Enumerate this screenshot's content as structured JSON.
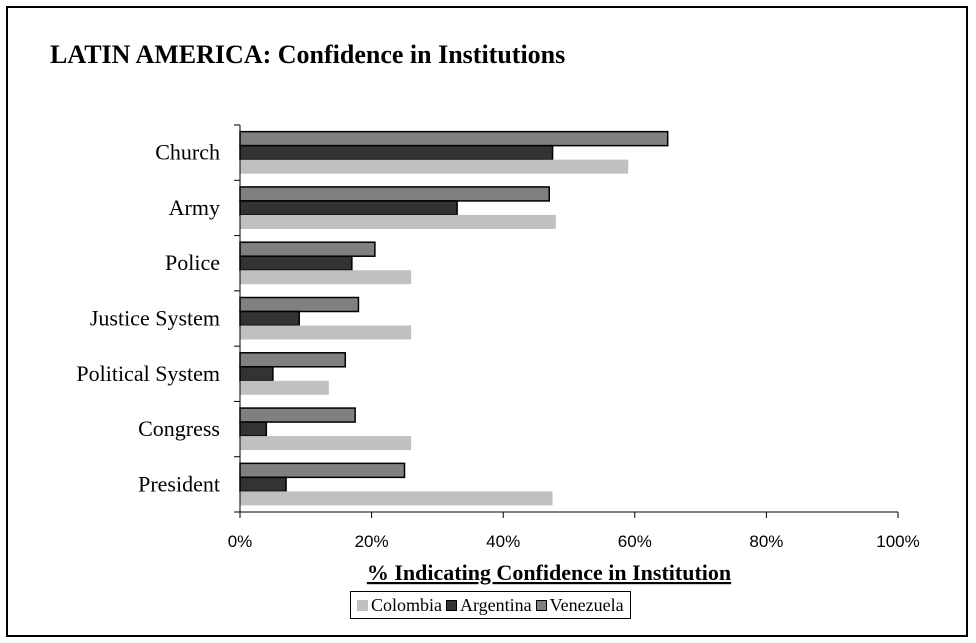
{
  "chart_data": {
    "type": "bar",
    "orientation": "horizontal",
    "title": "LATIN AMERICA: Confidence in Institutions",
    "xlabel": "% Indicating Confidence in Institution",
    "ylabel": "",
    "categories": [
      "Church",
      "Army",
      "Police",
      "Justice System",
      "Political System",
      "Congress",
      "President"
    ],
    "series": [
      {
        "name": "Colombia",
        "color": "#c0c0c0",
        "outline": false,
        "values": [
          59,
          48,
          26,
          26,
          13.5,
          26,
          47.5
        ]
      },
      {
        "name": "Argentina",
        "color": "#333333",
        "outline": true,
        "values": [
          47.5,
          33,
          17,
          9,
          5,
          4,
          7
        ]
      },
      {
        "name": "Venezuela",
        "color": "#808080",
        "outline": true,
        "values": [
          65,
          47,
          20.5,
          18,
          16,
          17.5,
          25
        ]
      }
    ],
    "xlim": [
      0,
      100
    ],
    "xticks": [
      0,
      20,
      40,
      60,
      80,
      100
    ],
    "xtick_labels": [
      "0%",
      "20%",
      "40%",
      "60%",
      "80%",
      "100%"
    ],
    "grid": false,
    "legend_position": "bottom"
  }
}
